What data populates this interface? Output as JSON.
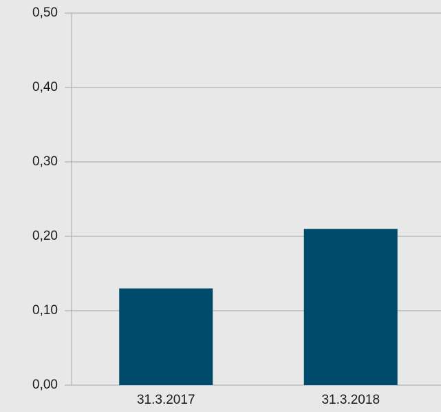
{
  "chart_data": {
    "type": "bar",
    "categories": [
      "31.3.2017",
      "31.3.2018"
    ],
    "values": [
      0.13,
      0.21
    ],
    "color": "#004a6b",
    "ylim": [
      0,
      0.5
    ],
    "yticks": [
      {
        "value": 0,
        "label": "0,00"
      },
      {
        "value": 0.1,
        "label": "0,10"
      },
      {
        "value": 0.2,
        "label": "0,20"
      },
      {
        "value": 0.3,
        "label": "0,30"
      },
      {
        "value": 0.4,
        "label": "0,40"
      },
      {
        "value": 0.5,
        "label": "0,50"
      }
    ],
    "grid": true
  }
}
